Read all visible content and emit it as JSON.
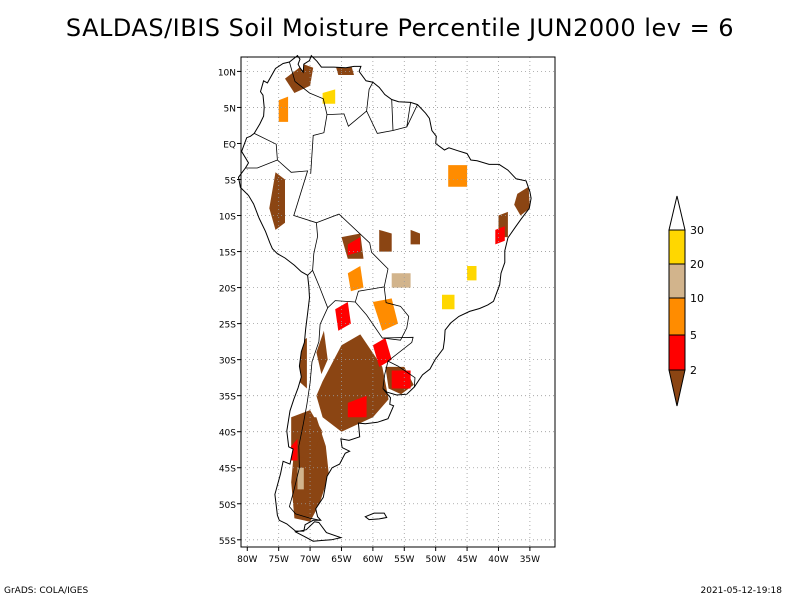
{
  "title": "SALDAS/IBIS Soil Moisture Percentile JUN2000 lev = 6",
  "footer": {
    "left": "GrADS: COLA/IGES",
    "right": "2021-05-12-19:18"
  },
  "map": {
    "region": "South America",
    "lon_range": [
      -81,
      -31
    ],
    "lat_range": [
      -56,
      12
    ],
    "lat_ticks": [
      {
        "value": 10,
        "label": "10N"
      },
      {
        "value": 5,
        "label": "5N"
      },
      {
        "value": 0,
        "label": "EQ"
      },
      {
        "value": -5,
        "label": "5S"
      },
      {
        "value": -10,
        "label": "10S"
      },
      {
        "value": -15,
        "label": "15S"
      },
      {
        "value": -20,
        "label": "20S"
      },
      {
        "value": -25,
        "label": "25S"
      },
      {
        "value": -30,
        "label": "30S"
      },
      {
        "value": -35,
        "label": "35S"
      },
      {
        "value": -40,
        "label": "40S"
      },
      {
        "value": -45,
        "label": "45S"
      },
      {
        "value": -50,
        "label": "50S"
      },
      {
        "value": -55,
        "label": "55S"
      }
    ],
    "lon_ticks": [
      {
        "value": -80,
        "label": "80W"
      },
      {
        "value": -75,
        "label": "75W"
      },
      {
        "value": -70,
        "label": "70W"
      },
      {
        "value": -65,
        "label": "65W"
      },
      {
        "value": -60,
        "label": "60W"
      },
      {
        "value": -55,
        "label": "55W"
      },
      {
        "value": -50,
        "label": "50W"
      },
      {
        "value": -45,
        "label": "45W"
      },
      {
        "value": -40,
        "label": "40W"
      },
      {
        "value": -35,
        "label": "35W"
      }
    ],
    "grid": "dotted",
    "regions": [
      {
        "class": "lt2",
        "pts": [
          [
            -71.5,
            -38
          ],
          [
            -69,
            -38
          ],
          [
            -67.5,
            -42
          ],
          [
            -67,
            -46
          ],
          [
            -68.5,
            -50
          ],
          [
            -70,
            -52.5
          ],
          [
            -72.5,
            -52
          ],
          [
            -73,
            -47
          ],
          [
            -72.5,
            -42
          ]
        ]
      },
      {
        "class": "lt2",
        "pts": [
          [
            -73,
            -38
          ],
          [
            -70,
            -37
          ],
          [
            -68,
            -40
          ],
          [
            -70,
            -44
          ],
          [
            -73,
            -43
          ]
        ]
      },
      {
        "class": "lt2",
        "pts": [
          [
            -68,
            -33
          ],
          [
            -65,
            -28
          ],
          [
            -62,
            -26.5
          ],
          [
            -58.5,
            -31
          ],
          [
            -57.5,
            -35.5
          ],
          [
            -60,
            -38
          ],
          [
            -65,
            -40
          ],
          [
            -68,
            -38
          ],
          [
            -69,
            -35
          ]
        ]
      },
      {
        "class": "lt2",
        "pts": [
          [
            -69,
            -29
          ],
          [
            -67.8,
            -26
          ],
          [
            -67.2,
            -30
          ],
          [
            -68.2,
            -32
          ]
        ]
      },
      {
        "class": "lt2",
        "pts": [
          [
            -72.5,
            -28
          ],
          [
            -70.5,
            -27
          ],
          [
            -70.5,
            -34
          ],
          [
            -71.8,
            -33
          ]
        ]
      },
      {
        "class": "lt2",
        "pts": [
          [
            -58,
            -31
          ],
          [
            -55,
            -31
          ],
          [
            -53.5,
            -33.5
          ],
          [
            -55.5,
            -34.8
          ],
          [
            -57.5,
            -34
          ]
        ]
      },
      {
        "class": "lt2",
        "pts": [
          [
            -75.5,
            -4
          ],
          [
            -74,
            -5
          ],
          [
            -74,
            -11
          ],
          [
            -75.5,
            -12
          ],
          [
            -76.5,
            -9
          ]
        ]
      },
      {
        "class": "lt2",
        "pts": [
          [
            -74,
            9
          ],
          [
            -71,
            11
          ],
          [
            -69.5,
            10.5
          ],
          [
            -70,
            8
          ],
          [
            -72.5,
            7
          ]
        ]
      },
      {
        "class": "lt2",
        "pts": [
          [
            -66,
            11
          ],
          [
            -63.5,
            11
          ],
          [
            -63,
            9.5
          ],
          [
            -65.5,
            9.5
          ]
        ]
      },
      {
        "class": "lt2",
        "pts": [
          [
            -37,
            -7
          ],
          [
            -35.2,
            -6
          ],
          [
            -35,
            -9
          ],
          [
            -36.5,
            -10
          ],
          [
            -37.5,
            -8.5
          ]
        ]
      },
      {
        "class": "lt2",
        "pts": [
          [
            -40,
            -10
          ],
          [
            -38.5,
            -9.5
          ],
          [
            -38.5,
            -13
          ],
          [
            -40,
            -13
          ]
        ]
      },
      {
        "class": "lt2",
        "pts": [
          [
            -59,
            -12
          ],
          [
            -57,
            -12.5
          ],
          [
            -57,
            -15
          ],
          [
            -59,
            -15
          ]
        ]
      },
      {
        "class": "lt2",
        "pts": [
          [
            -65,
            -13
          ],
          [
            -62,
            -12.5
          ],
          [
            -61.5,
            -16
          ],
          [
            -64,
            -16
          ]
        ]
      },
      {
        "class": "lt2",
        "pts": [
          [
            -54,
            -12
          ],
          [
            -52.5,
            -12.5
          ],
          [
            -52.5,
            -14
          ],
          [
            -54,
            -14
          ]
        ]
      },
      {
        "class": "r2_5",
        "pts": [
          [
            -57,
            -31.5
          ],
          [
            -54,
            -31.5
          ],
          [
            -54,
            -34
          ],
          [
            -57,
            -34
          ]
        ]
      },
      {
        "class": "r2_5",
        "pts": [
          [
            -60,
            -28
          ],
          [
            -58,
            -27
          ],
          [
            -57,
            -30
          ],
          [
            -59,
            -31
          ]
        ]
      },
      {
        "class": "r2_5",
        "pts": [
          [
            -64,
            -36
          ],
          [
            -61,
            -35
          ],
          [
            -61,
            -38
          ],
          [
            -64,
            -38
          ]
        ]
      },
      {
        "class": "r2_5",
        "pts": [
          [
            -64,
            -14
          ],
          [
            -62,
            -13
          ],
          [
            -62,
            -15
          ],
          [
            -64,
            -15.5
          ]
        ]
      },
      {
        "class": "r2_5",
        "pts": [
          [
            -73,
            -42
          ],
          [
            -72,
            -41
          ],
          [
            -72,
            -44
          ],
          [
            -73,
            -44
          ]
        ]
      },
      {
        "class": "r2_5",
        "pts": [
          [
            -66,
            -23
          ],
          [
            -64,
            -22
          ],
          [
            -63.5,
            -25
          ],
          [
            -65.5,
            -26
          ]
        ]
      },
      {
        "class": "r2_5",
        "pts": [
          [
            -40.5,
            -12
          ],
          [
            -39,
            -11.5
          ],
          [
            -39,
            -13.5
          ],
          [
            -40.5,
            -14
          ]
        ]
      },
      {
        "class": "r5_10",
        "pts": [
          [
            -60,
            -22
          ],
          [
            -57,
            -21.5
          ],
          [
            -56,
            -25
          ],
          [
            -58.5,
            -26
          ]
        ]
      },
      {
        "class": "r5_10",
        "pts": [
          [
            -75,
            6
          ],
          [
            -73.5,
            6.5
          ],
          [
            -73.5,
            3
          ],
          [
            -75,
            3
          ]
        ]
      },
      {
        "class": "r5_10",
        "pts": [
          [
            -48,
            -3
          ],
          [
            -45,
            -3
          ],
          [
            -45,
            -6
          ],
          [
            -48,
            -6
          ]
        ]
      },
      {
        "class": "r5_10",
        "pts": [
          [
            -64,
            -18
          ],
          [
            -62,
            -17
          ],
          [
            -61.5,
            -20
          ],
          [
            -63.5,
            -20.5
          ]
        ]
      },
      {
        "class": "r10_20",
        "pts": [
          [
            -57,
            -18
          ],
          [
            -54,
            -18
          ],
          [
            -54,
            -20
          ],
          [
            -57,
            -20
          ]
        ]
      },
      {
        "class": "r10_20",
        "pts": [
          [
            -72,
            -45
          ],
          [
            -71,
            -45
          ],
          [
            -71,
            -48
          ],
          [
            -72,
            -48
          ]
        ]
      },
      {
        "class": "r20_30",
        "pts": [
          [
            -68,
            7
          ],
          [
            -66,
            7.5
          ],
          [
            -66,
            5.5
          ],
          [
            -68,
            5.5
          ]
        ]
      },
      {
        "class": "r20_30",
        "pts": [
          [
            -49,
            -21
          ],
          [
            -47,
            -21
          ],
          [
            -47,
            -23
          ],
          [
            -49,
            -23
          ]
        ]
      },
      {
        "class": "r20_30",
        "pts": [
          [
            -45,
            -17
          ],
          [
            -43.5,
            -17
          ],
          [
            -43.5,
            -19
          ],
          [
            -45,
            -19
          ]
        ]
      }
    ]
  },
  "legend": {
    "labels": [
      "30",
      "20",
      "10",
      "5",
      "2"
    ],
    "colors": {
      "gt30": "#ffffff",
      "r20_30": "#ffd700",
      "r10_20": "#d2b48c",
      "r5_10": "#ff8c00",
      "r2_5": "#ff0000",
      "lt2": "#8b4513"
    }
  },
  "colors": {
    "coast": "#000000",
    "grid": "#9a9a9a",
    "land": "#ffffff"
  }
}
